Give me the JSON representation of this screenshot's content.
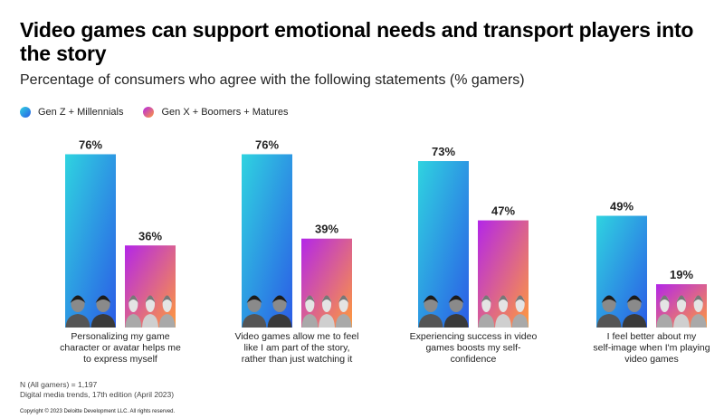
{
  "title": "Video games can support emotional needs and transport players into the story",
  "subtitle": "Percentage of consumers who agree with the following statements (% gamers)",
  "legend": [
    {
      "label": "Gen Z + Millennials",
      "color": "#2b5ce6"
    },
    {
      "label": "Gen X + Boomers + Matures",
      "color": "#b326e8"
    }
  ],
  "chart_data": {
    "type": "bar",
    "categories": [
      "Personalizing my game character or avatar helps me to express myself",
      "Video games allow me to feel like I am part of the story, rather than just watching it",
      "Experiencing success in video games boosts my self-confidence",
      "I feel better about my self-image when I'm playing video games"
    ],
    "category_lines": [
      [
        "Personalizing my game",
        "character or avatar helps me",
        "to express myself"
      ],
      [
        "Video games allow me to feel",
        "like I am part of the story,",
        "rather than just watching it"
      ],
      [
        "Experiencing success in video",
        "games boosts my self-",
        "confidence"
      ],
      [
        "I feel better about my",
        "self-image when I'm playing",
        "video games"
      ]
    ],
    "series": [
      {
        "name": "Gen Z + Millennials",
        "values": [
          76,
          76,
          73,
          49
        ],
        "labels": [
          "76%",
          "76%",
          "73%",
          "49%"
        ],
        "colors": [
          "#2fd3e0",
          "#2b5ce6"
        ]
      },
      {
        "name": "Gen X + Boomers + Matures",
        "values": [
          36,
          39,
          47,
          19
        ],
        "labels": [
          "36%",
          "39%",
          "47%",
          "19%"
        ],
        "colors": [
          "#b326e8",
          "#ff9a3c"
        ]
      }
    ],
    "ylim": [
      0,
      100
    ],
    "unit": "%",
    "grid": false
  },
  "footnotes": [
    "N (All gamers) = 1,197",
    "Digital media trends, 17th edition (April 2023)"
  ],
  "copyright": "Copyright © 2023 Deloitte Development LLC. All rights reserved."
}
